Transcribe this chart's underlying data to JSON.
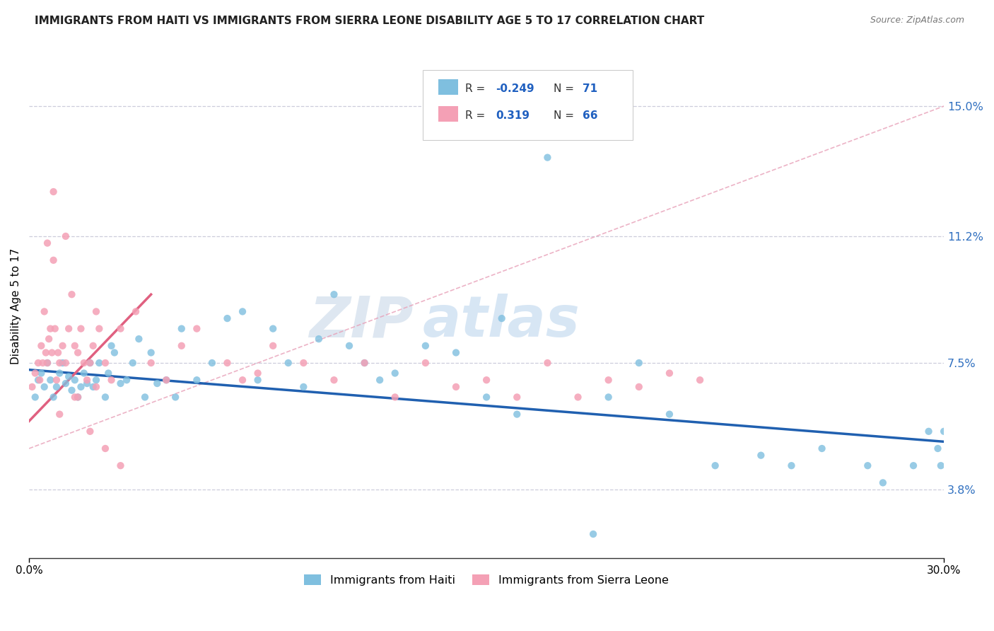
{
  "title": "IMMIGRANTS FROM HAITI VS IMMIGRANTS FROM SIERRA LEONE DISABILITY AGE 5 TO 17 CORRELATION CHART",
  "source": "Source: ZipAtlas.com",
  "ylabel": "Disability Age 5 to 17",
  "xlim": [
    0.0,
    30.0
  ],
  "ylim": [
    1.8,
    16.5
  ],
  "yticks": [
    3.8,
    7.5,
    11.2,
    15.0
  ],
  "ytick_labels": [
    "3.8%",
    "7.5%",
    "11.2%",
    "15.0%"
  ],
  "haiti_R": -0.249,
  "haiti_N": 71,
  "sierra_leone_R": 0.319,
  "sierra_leone_N": 66,
  "haiti_color": "#7fbfdf",
  "sierra_leone_color": "#f4a0b5",
  "haiti_trend_color": "#2060b0",
  "sierra_leone_trend_color": "#e06080",
  "sierra_leone_trend_dash_color": "#e8a0b8",
  "grid_color": "#c8c8d8",
  "legend_haiti_label": "Immigrants from Haiti",
  "legend_sierra_label": "Immigrants from Sierra Leone",
  "haiti_x": [
    0.2,
    0.3,
    0.4,
    0.5,
    0.6,
    0.7,
    0.8,
    0.9,
    1.0,
    1.1,
    1.2,
    1.3,
    1.4,
    1.5,
    1.6,
    1.7,
    1.8,
    1.9,
    2.0,
    2.1,
    2.2,
    2.3,
    2.5,
    2.6,
    2.7,
    2.8,
    3.0,
    3.2,
    3.4,
    3.6,
    3.8,
    4.0,
    4.2,
    4.5,
    4.8,
    5.0,
    5.5,
    6.0,
    6.5,
    7.0,
    7.5,
    8.0,
    8.5,
    9.0,
    9.5,
    10.0,
    10.5,
    11.0,
    11.5,
    12.0,
    13.0,
    14.0,
    15.0,
    15.5,
    16.0,
    17.0,
    18.5,
    19.0,
    20.0,
    21.0,
    22.5,
    24.0,
    25.0,
    26.0,
    27.5,
    28.0,
    29.0,
    29.5,
    29.8,
    29.9,
    30.0
  ],
  "haiti_y": [
    6.5,
    7.0,
    7.2,
    6.8,
    7.5,
    7.0,
    6.5,
    6.8,
    7.2,
    7.5,
    6.9,
    7.1,
    6.7,
    7.0,
    6.5,
    6.8,
    7.2,
    6.9,
    7.5,
    6.8,
    7.0,
    7.5,
    6.5,
    7.2,
    8.0,
    7.8,
    6.9,
    7.0,
    7.5,
    8.2,
    6.5,
    7.8,
    6.9,
    7.0,
    6.5,
    8.5,
    7.0,
    7.5,
    8.8,
    9.0,
    7.0,
    8.5,
    7.5,
    6.8,
    8.2,
    9.5,
    8.0,
    7.5,
    7.0,
    7.2,
    8.0,
    7.8,
    6.5,
    8.8,
    6.0,
    13.5,
    2.5,
    6.5,
    7.5,
    6.0,
    4.5,
    4.8,
    4.5,
    5.0,
    4.5,
    4.0,
    4.5,
    5.5,
    5.0,
    4.5,
    5.5
  ],
  "sierra_x": [
    0.1,
    0.2,
    0.3,
    0.35,
    0.4,
    0.45,
    0.5,
    0.55,
    0.6,
    0.65,
    0.7,
    0.75,
    0.8,
    0.85,
    0.9,
    0.95,
    1.0,
    1.1,
    1.2,
    1.3,
    1.4,
    1.5,
    1.6,
    1.7,
    1.8,
    1.9,
    2.0,
    2.1,
    2.2,
    2.3,
    2.5,
    2.7,
    3.0,
    3.5,
    4.0,
    4.5,
    5.0,
    5.5,
    6.5,
    7.0,
    7.5,
    8.0,
    9.0,
    10.0,
    11.0,
    12.0,
    13.0,
    14.0,
    15.0,
    16.0,
    17.0,
    18.0,
    19.0,
    20.0,
    21.0,
    22.0,
    1.0,
    1.5,
    2.0,
    2.5,
    3.0,
    0.6,
    0.8,
    1.2,
    1.6,
    2.2
  ],
  "sierra_y": [
    6.8,
    7.2,
    7.5,
    7.0,
    8.0,
    7.5,
    9.0,
    7.8,
    7.5,
    8.2,
    8.5,
    7.8,
    12.5,
    8.5,
    7.0,
    7.8,
    7.5,
    8.0,
    7.5,
    8.5,
    9.5,
    8.0,
    7.8,
    8.5,
    7.5,
    7.0,
    7.5,
    8.0,
    9.0,
    8.5,
    7.5,
    7.0,
    8.5,
    9.0,
    7.5,
    7.0,
    8.0,
    8.5,
    7.5,
    7.0,
    7.2,
    8.0,
    7.5,
    7.0,
    7.5,
    6.5,
    7.5,
    6.8,
    7.0,
    6.5,
    7.5,
    6.5,
    7.0,
    6.8,
    7.2,
    7.0,
    6.0,
    6.5,
    5.5,
    5.0,
    4.5,
    11.0,
    10.5,
    11.2,
    6.5,
    6.8
  ]
}
